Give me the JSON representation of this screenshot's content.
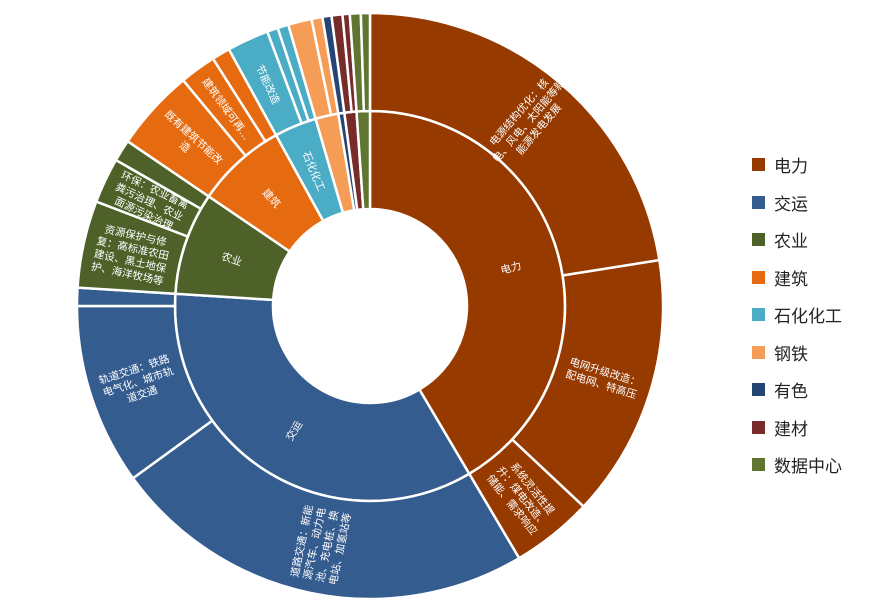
{
  "chart_data": {
    "type": "sunburst",
    "title": "",
    "unit": "share (%)",
    "categories": [
      {
        "name": "电力",
        "color": "#973A00",
        "value": 41.5,
        "children": [
          {
            "name": "电源结构优化：核电、风电、太阳能等新能源发电发展",
            "label": "电源结构优化：核\n电、风电、太阳能等新\n能源发电发展",
            "value": 22.5
          },
          {
            "name": "电网升级改造：配电网、特高压",
            "label": "电网升级改造：\n配电网、特高压",
            "value": 14.5
          },
          {
            "name": "系统灵活性提升：煤电改造、储能、需求响应",
            "label": "系统灵活性提\n升：煤电改造、\n储能、需求响应",
            "value": 4.5
          }
        ]
      },
      {
        "name": "交运",
        "color": "#355C8F",
        "value": 34.5,
        "children": [
          {
            "name": "道路交通：新能源汽车、动力电池、充电桩、换电站、加氢站等",
            "label": "道路交通：新能\n源汽车、动力电\n池、充电桩、换\n电站、加氢站等",
            "value": 23.5
          },
          {
            "name": "轨道交通：铁路电气化、城市轨道交通",
            "label": "轨道交通：铁路\n电气化、城市轨\n道交通",
            "value": 10.0
          },
          {
            "name": "",
            "label": "",
            "value": 1.0
          }
        ]
      },
      {
        "name": "农业",
        "color": "#4E6129",
        "value": 8.5,
        "children": [
          {
            "name": "资源保护与修复：高标准农田建设、黑土地保护、海洋牧场等",
            "label": "资源保护与修\n复：高标准农田\n建设、黑土地保\n护、海洋牧场等",
            "value": 4.8
          },
          {
            "name": "环保：农业畜禽粪污治理、农业面源污染治理",
            "label": "环保：农业畜禽\n粪污治理、农业\n面源污染治理",
            "value": 2.5
          },
          {
            "name": "",
            "label": "",
            "value": 1.2
          }
        ]
      },
      {
        "name": "建筑",
        "color": "#E66B10",
        "value": 7.5,
        "children": [
          {
            "name": "既有建筑节能改造",
            "label": "既有建筑节能改\n造",
            "value": 4.5
          },
          {
            "name": "建筑领域可再…",
            "label": "建筑领域可再…",
            "value": 2.0
          },
          {
            "name": "",
            "label": "",
            "value": 1.0
          }
        ]
      },
      {
        "name": "石化化工",
        "color": "#4BACC6",
        "value": 3.5,
        "children": [
          {
            "name": "节能改造",
            "label": "节能改造",
            "value": 2.3
          },
          {
            "name": "",
            "label": "",
            "value": 0.6
          },
          {
            "name": "",
            "label": "",
            "value": 0.6
          }
        ]
      },
      {
        "name": "钢铁",
        "color": "#F59D56",
        "value": 1.9,
        "children": [
          {
            "name": "",
            "label": "",
            "value": 1.3
          },
          {
            "name": "",
            "label": "",
            "value": 0.6
          }
        ]
      },
      {
        "name": "有色",
        "color": "#254675",
        "value": 0.5,
        "children": [
          {
            "name": "",
            "label": "",
            "value": 0.5
          }
        ]
      },
      {
        "name": "建材",
        "color": "#772C2A",
        "value": 1.0,
        "children": [
          {
            "name": "",
            "label": "",
            "value": 0.6
          },
          {
            "name": "",
            "label": "",
            "value": 0.4
          }
        ]
      },
      {
        "name": "数据中心",
        "color": "#5F7530",
        "value": 1.1,
        "children": [
          {
            "name": "",
            "label": "",
            "value": 0.6
          },
          {
            "name": "",
            "label": "",
            "value": 0.5
          }
        ]
      }
    ],
    "legend": {
      "position": "right",
      "items": [
        "电力",
        "交运",
        "农业",
        "建筑",
        "石化化工",
        "钢铁",
        "有色",
        "建材",
        "数据中心"
      ]
    }
  }
}
